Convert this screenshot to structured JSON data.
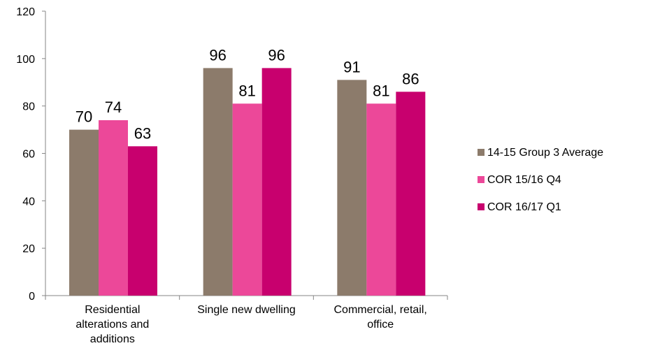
{
  "chart_data": {
    "type": "bar",
    "categories": [
      [
        "Residential",
        "alterations and",
        "additions"
      ],
      [
        "Single new dwelling"
      ],
      [
        "Commercial, retail,",
        "office"
      ]
    ],
    "series": [
      {
        "name": "14-15 Group 3 Average",
        "values": [
          70,
          96,
          91
        ],
        "color": "#8c7b6b"
      },
      {
        "name": "COR 15/16 Q4",
        "values": [
          74,
          81,
          81
        ],
        "color": "#ec4899"
      },
      {
        "name": "COR 16/17 Q1",
        "values": [
          63,
          96,
          86
        ],
        "color": "#c8006e"
      }
    ],
    "ylim": [
      0,
      120
    ],
    "yticks": [
      0,
      20,
      40,
      60,
      80,
      100,
      120
    ],
    "data_labels": true,
    "grid": false,
    "legend_position": "right"
  }
}
